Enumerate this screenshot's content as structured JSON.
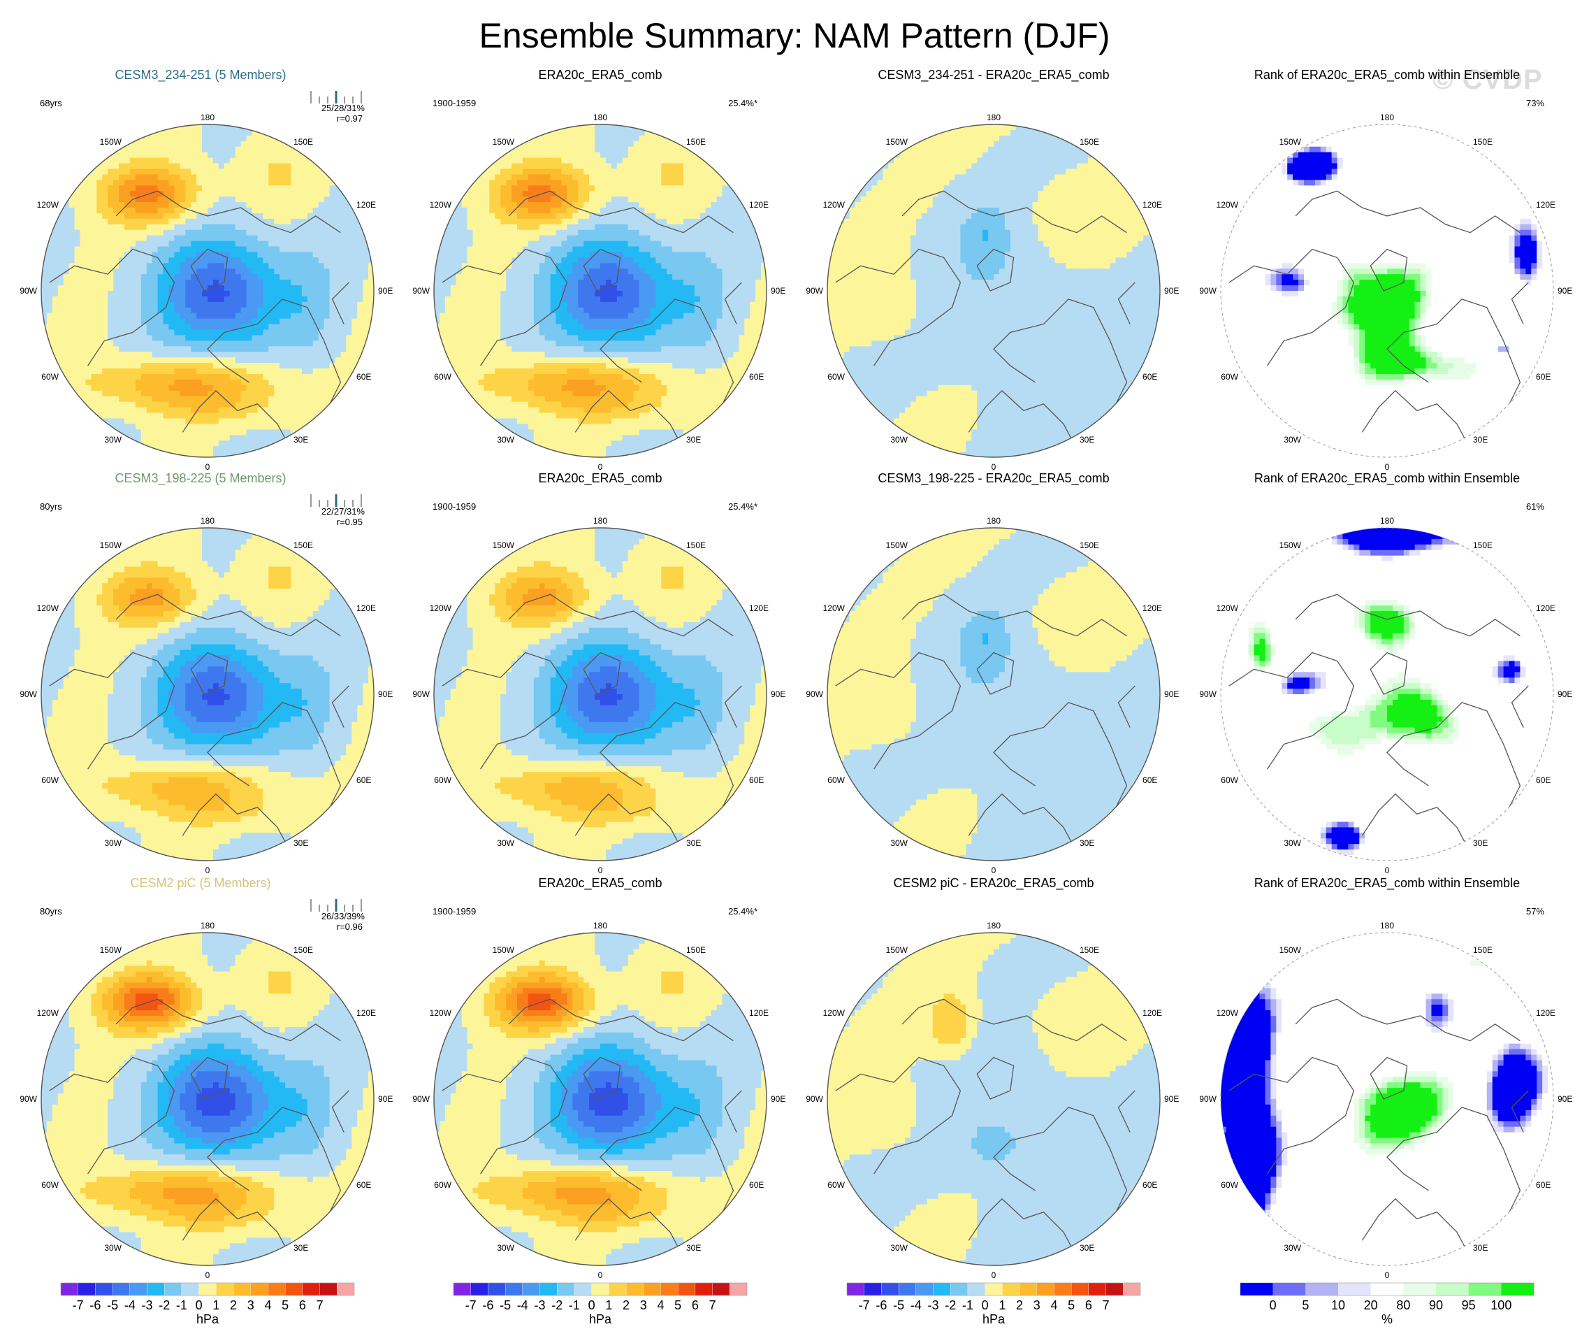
{
  "title": "Ensemble Summary: NAM Pattern (DJF)",
  "watermark": "© CVDP",
  "units": {
    "hpa": "hPa",
    "pct": "%"
  },
  "colors": {
    "neg": [
      "#7f26e6",
      "#2a20e6",
      "#3050e8",
      "#3f78ee",
      "#4a99f3",
      "#23b9f4",
      "#78c8f2",
      "#b6dcf3"
    ],
    "pos": [
      "#fdf59a",
      "#fdd447",
      "#fdbc2e",
      "#fca022",
      "#f97e1a",
      "#f35412",
      "#e0200d",
      "#c51315",
      "#f5a5a5"
    ],
    "rank": [
      "#0000f5",
      "#6d6df8",
      "#b2b2f4",
      "#e4e4fb",
      "#ffffff",
      "#e8fde8",
      "#c8fcc8",
      "#7ffb7f",
      "#14f014"
    ]
  },
  "hpa_colorbar": {
    "labels": [
      "-7",
      "-6",
      "-5",
      "-4",
      "-3",
      "-2",
      "-1",
      "0",
      "1",
      "2",
      "3",
      "4",
      "5",
      "6",
      "7"
    ]
  },
  "rank_colorbar": {
    "labels": [
      "0",
      "5",
      "10",
      "20",
      "80",
      "90",
      "95",
      "100"
    ]
  },
  "lon_labels": {
    "top": "180",
    "bottom": "0",
    "left": "90W",
    "right": "90E",
    "ul1": "150W",
    "ur1": "150E",
    "ul2": "120W",
    "ur2": "120E",
    "ll1": "60W",
    "lr1": "60E",
    "ll2": "30W",
    "lr2": "30E"
  },
  "rows": [
    {
      "ensemble_title": "CESM3_234-251 (5 Members)",
      "title_color": "#2c6e8a",
      "years": "68yrs",
      "stats": "25/28/31%",
      "corr": "r=0.97",
      "obs_title": "ERA20c_ERA5_comb",
      "obs_period": "1900-1959",
      "obs_pct": "25.4%*",
      "diff_title": "CESM3_234-251 - ERA20c_ERA5_comb",
      "rank_title": "Rank of ERA20c_ERA5_comb within Ensemble",
      "rank_pct": "73%"
    },
    {
      "ensemble_title": "CESM3_198-225 (5 Members)",
      "title_color": "#6e9a6e",
      "years": "80yrs",
      "stats": "22/27/31%",
      "corr": "r=0.95",
      "obs_title": "ERA20c_ERA5_comb",
      "obs_period": "1900-1959",
      "obs_pct": "25.4%*",
      "diff_title": "CESM3_198-225 - ERA20c_ERA5_comb",
      "rank_title": "Rank of ERA20c_ERA5_comb within Ensemble",
      "rank_pct": "61%"
    },
    {
      "ensemble_title": "CESM2 piC (5 Members)",
      "title_color": "#d8c37a",
      "years": "80yrs",
      "stats": "26/33/39%",
      "corr": "r=0.96",
      "obs_title": "ERA20c_ERA5_comb",
      "obs_period": "1900-1959",
      "obs_pct": "25.4%*",
      "diff_title": "CESM2 piC - ERA20c_ERA5_comb",
      "rank_title": "Rank of ERA20c_ERA5_comb within Ensemble",
      "rank_pct": "57%"
    }
  ],
  "chart_data": {
    "type": "heatmap",
    "title": "Ensemble Summary: NAM Pattern (DJF)",
    "projection": "north polar stereographic",
    "units": "hPa",
    "contour_levels": [
      -7,
      -6,
      -5,
      -4,
      -3,
      -2,
      -1,
      0,
      1,
      2,
      3,
      4,
      5,
      6,
      7
    ],
    "rank_levels_percent": [
      0,
      5,
      10,
      20,
      80,
      90,
      95,
      100
    ],
    "panels": [
      {
        "row": 1,
        "col": 1,
        "kind": "pattern",
        "name": "CESM3_234-251 (5 Members)",
        "period": "68yrs",
        "pct_variance_min_mean_max": "25/28/31%",
        "pattern_corr": 0.97,
        "polar_low_min": -5,
        "pacific_high_max": 4,
        "atlantic_high_max": 3
      },
      {
        "row": 1,
        "col": 2,
        "kind": "pattern",
        "name": "ERA20c_ERA5_comb",
        "period": "1900-1959",
        "pct_variance": "25.4%*",
        "polar_low_min": -5,
        "pacific_high_max": 4,
        "atlantic_high_max": 2
      },
      {
        "row": 1,
        "col": 3,
        "kind": "difference",
        "name": "CESM3_234-251 - ERA20c_ERA5_comb",
        "range": [
          -2,
          1
        ]
      },
      {
        "row": 1,
        "col": 4,
        "kind": "rank",
        "name": "Rank of ERA20c_ERA5_comb within Ensemble",
        "area_pct": "73%"
      },
      {
        "row": 2,
        "col": 1,
        "kind": "pattern",
        "name": "CESM3_198-225 (5 Members)",
        "period": "80yrs",
        "pct_variance_min_mean_max": "22/27/31%",
        "pattern_corr": 0.95,
        "polar_low_min": -5,
        "pacific_high_max": 3,
        "atlantic_high_max": 2
      },
      {
        "row": 2,
        "col": 2,
        "kind": "pattern",
        "name": "ERA20c_ERA5_comb",
        "period": "1900-1959",
        "pct_variance": "25.4%*",
        "polar_low_min": -5,
        "pacific_high_max": 4,
        "atlantic_high_max": 2
      },
      {
        "row": 2,
        "col": 3,
        "kind": "difference",
        "name": "CESM3_198-225 - ERA20c_ERA5_comb",
        "range": [
          -2,
          1
        ]
      },
      {
        "row": 2,
        "col": 4,
        "kind": "rank",
        "name": "Rank of ERA20c_ERA5_comb within Ensemble",
        "area_pct": "61%"
      },
      {
        "row": 3,
        "col": 1,
        "kind": "pattern",
        "name": "CESM2 piC (5 Members)",
        "period": "80yrs",
        "pct_variance_min_mean_max": "26/33/39%",
        "pattern_corr": 0.96,
        "polar_low_min": -5,
        "pacific_high_max": 5,
        "atlantic_high_max": 3
      },
      {
        "row": 3,
        "col": 2,
        "kind": "pattern",
        "name": "ERA20c_ERA5_comb",
        "period": "1900-1959",
        "pct_variance": "25.4%*",
        "polar_low_min": -5,
        "pacific_high_max": 4,
        "atlantic_high_max": 2
      },
      {
        "row": 3,
        "col": 3,
        "kind": "difference",
        "name": "CESM2 piC - ERA20c_ERA5_comb",
        "range": [
          -3,
          2
        ]
      },
      {
        "row": 3,
        "col": 4,
        "kind": "rank",
        "name": "Rank of ERA20c_ERA5_comb within Ensemble",
        "area_pct": "57%"
      }
    ]
  }
}
